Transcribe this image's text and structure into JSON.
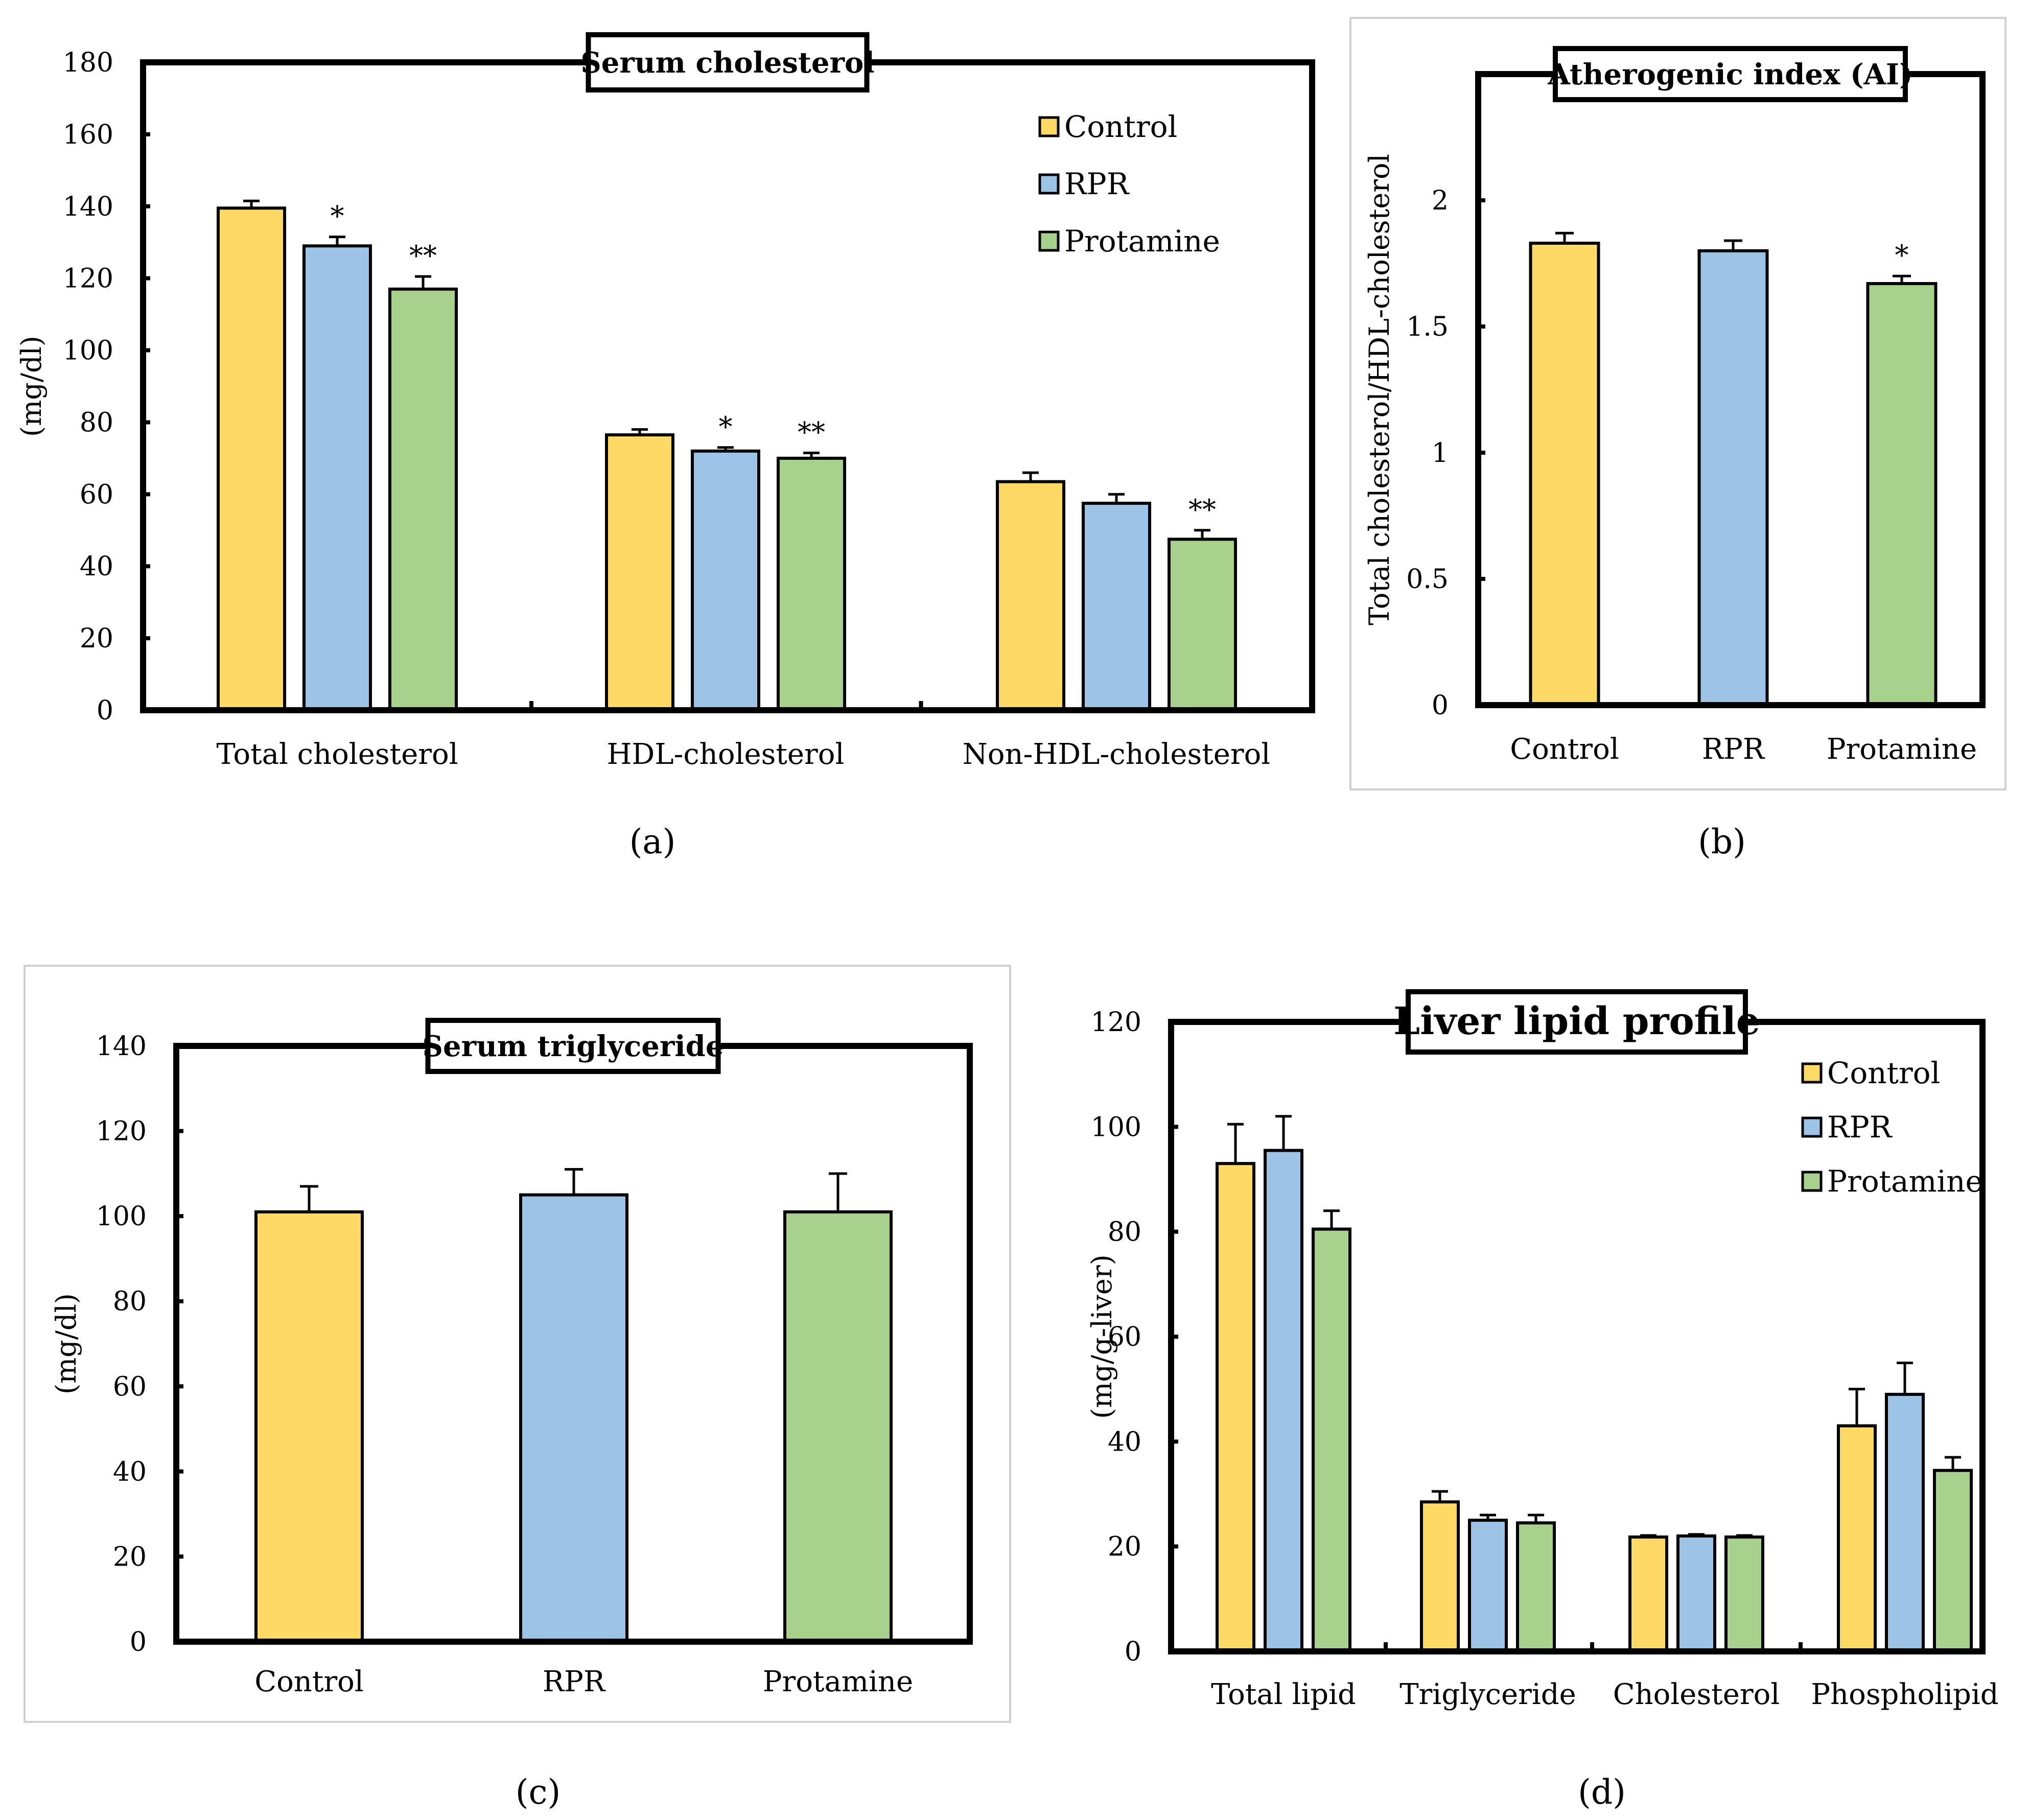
{
  "colors": {
    "Control": "#FFD966",
    "RPR": "#9DC3E6",
    "Protamine": "#A9D18E",
    "axis": "#000000",
    "frame": "#d0d0d0"
  },
  "chart_data": [
    {
      "id": "a",
      "type": "bar",
      "title": "Serum cholesterol",
      "caption": "(a)",
      "ylabel": "(mg/dl)",
      "xlabel": "",
      "ylim": [
        0,
        180
      ],
      "yticks": [
        "0",
        "20",
        "40",
        "60",
        "80",
        "100",
        "120",
        "140",
        "160",
        "180"
      ],
      "categories": [
        "Total cholesterol",
        "HDL-cholesterol",
        "Non-HDL-cholesterol"
      ],
      "legend_position": "top-right",
      "grid": false,
      "series": [
        {
          "name": "Control",
          "values": [
            139.5,
            76.5,
            63.5
          ],
          "errors": [
            2,
            1.5,
            2.5
          ],
          "sig": [
            "",
            "",
            ""
          ]
        },
        {
          "name": "RPR",
          "values": [
            129,
            72,
            57.5
          ],
          "errors": [
            2.5,
            1,
            2.5
          ],
          "sig": [
            "*",
            "*",
            ""
          ]
        },
        {
          "name": "Protamine",
          "values": [
            117,
            70,
            47.5
          ],
          "errors": [
            3.5,
            1.5,
            2.5
          ],
          "sig": [
            "**",
            "**",
            "**"
          ]
        }
      ]
    },
    {
      "id": "b",
      "type": "bar",
      "title": "Atherogenic index (AI)",
      "caption": "(b)",
      "ylabel": "Total cholesterol/HDL-cholesterol",
      "xlabel": "",
      "ylim": [
        0,
        2.5
      ],
      "yticks": [
        "0",
        "0.5",
        "1",
        "1.5",
        "2"
      ],
      "categories": [
        "Control",
        "RPR",
        "Protamine"
      ],
      "grid": false,
      "values": [
        1.83,
        1.8,
        1.67
      ],
      "errors": [
        0.04,
        0.04,
        0.03
      ],
      "sig": [
        "",
        "",
        "*"
      ]
    },
    {
      "id": "c",
      "type": "bar",
      "title": "Serum triglyceride",
      "caption": "(c)",
      "ylabel": "(mg/dl)",
      "xlabel": "",
      "ylim": [
        0,
        140
      ],
      "yticks": [
        "0",
        "20",
        "40",
        "60",
        "80",
        "100",
        "120",
        "140"
      ],
      "categories": [
        "Control",
        "RPR",
        "Protamine"
      ],
      "grid": false,
      "values": [
        101,
        105,
        101
      ],
      "errors": [
        6,
        6,
        9
      ],
      "sig": [
        "",
        "",
        ""
      ]
    },
    {
      "id": "d",
      "type": "bar",
      "title": "Liver lipid profile",
      "caption": "(d)",
      "ylabel": "(mg/g-liver)",
      "xlabel": "",
      "ylim": [
        0,
        120
      ],
      "yticks": [
        "0",
        "20",
        "40",
        "60",
        "80",
        "100",
        "120"
      ],
      "categories": [
        "Total lipid",
        "Triglyceride",
        "Cholesterol",
        "Phospholipid"
      ],
      "legend_position": "top-right",
      "grid": false,
      "series": [
        {
          "name": "Control",
          "values": [
            93,
            28.5,
            21.8,
            43
          ],
          "errors": [
            7.5,
            2,
            0.3,
            7
          ]
        },
        {
          "name": "RPR",
          "values": [
            95.5,
            25,
            22,
            49
          ],
          "errors": [
            6.5,
            1,
            0.3,
            6
          ]
        },
        {
          "name": "Protamine",
          "values": [
            80.5,
            24.5,
            21.8,
            34.5
          ],
          "errors": [
            3.5,
            1.5,
            0.3,
            2.5
          ]
        }
      ]
    }
  ]
}
